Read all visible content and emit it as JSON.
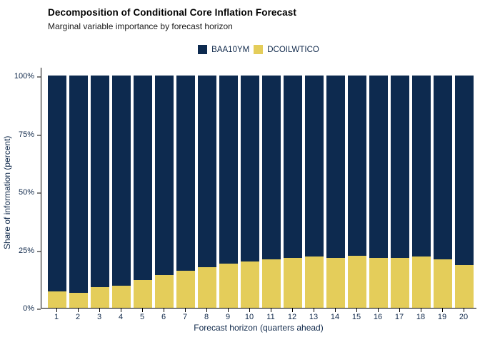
{
  "chart_data": {
    "type": "bar",
    "stacked": true,
    "title": "Decomposition of Conditional Core Inflation Forecast",
    "subtitle": "Marginal variable importance by forecast horizon",
    "xlabel": "Forecast horizon (quarters ahead)",
    "ylabel": "Share of information (percent)",
    "categories": [
      "1",
      "2",
      "3",
      "4",
      "5",
      "6",
      "7",
      "8",
      "9",
      "10",
      "11",
      "12",
      "13",
      "14",
      "15",
      "16",
      "17",
      "18",
      "19",
      "20"
    ],
    "series": [
      {
        "name": "BAA10YM",
        "color": "#0d2a4f",
        "values": [
          93,
          93.5,
          91,
          90.5,
          88,
          86,
          84,
          82.5,
          81,
          80,
          79,
          78.5,
          78,
          78.5,
          77.5,
          78.5,
          78.5,
          78,
          79,
          81.5
        ]
      },
      {
        "name": "DCOILWTICO",
        "color": "#e4cd5a",
        "values": [
          7,
          6.5,
          9,
          9.5,
          12,
          14,
          16,
          17.5,
          19,
          20,
          21,
          21.5,
          22,
          21.5,
          22.5,
          21.5,
          21.5,
          22,
          21,
          18.5
        ]
      }
    ],
    "stack_order_bottom_to_top": [
      "DCOILWTICO",
      "BAA10YM"
    ],
    "y_ticks": [
      {
        "label": "0%",
        "value": 0
      },
      {
        "label": "25%",
        "value": 25
      },
      {
        "label": "50%",
        "value": 50
      },
      {
        "label": "75%",
        "value": 75
      },
      {
        "label": "100%",
        "value": 100
      }
    ],
    "ylim": [
      0,
      100
    ],
    "legend_position": "top-center",
    "grid": false,
    "colors": {
      "background": "#ffffff",
      "axis_line": "#000000",
      "tick_text": "#10294b",
      "title_text": "#000000"
    }
  }
}
